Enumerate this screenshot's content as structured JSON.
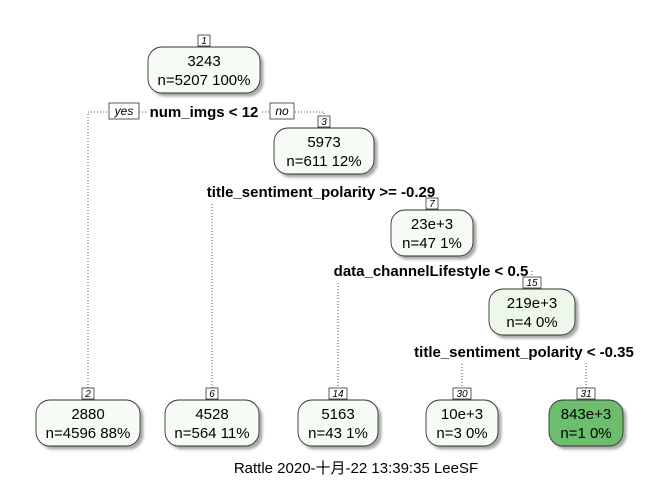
{
  "nodes": [
    {
      "id": "1",
      "value": "3243",
      "stats": "n=5207  100%",
      "fill": "#f7fbf5"
    },
    {
      "id": "3",
      "value": "5973",
      "stats": "n=611  12%",
      "fill": "#f7fbf5"
    },
    {
      "id": "7",
      "value": "23e+3",
      "stats": "n=47  1%",
      "fill": "#f7fbf5"
    },
    {
      "id": "15",
      "value": "219e+3",
      "stats": "n=4  0%",
      "fill": "#edf7ea"
    },
    {
      "id": "2",
      "value": "2880",
      "stats": "n=4596  88%",
      "fill": "#f7fbf5"
    },
    {
      "id": "6",
      "value": "4528",
      "stats": "n=564  11%",
      "fill": "#f7fbf5"
    },
    {
      "id": "14",
      "value": "5163",
      "stats": "n=43  1%",
      "fill": "#f7fbf5"
    },
    {
      "id": "30",
      "value": "10e+3",
      "stats": "n=3  0%",
      "fill": "#f7fbf5"
    },
    {
      "id": "31",
      "value": "843e+3",
      "stats": "n=1  0%",
      "fill": "#6cbd6e"
    }
  ],
  "splits": [
    {
      "at": "1",
      "label": "num_imgs < 12"
    },
    {
      "at": "3",
      "label": "title_sentiment_polarity >= -0.29"
    },
    {
      "at": "7",
      "label": "data_channelLifestyle < 0.5"
    },
    {
      "at": "15",
      "label": "title_sentiment_polarity < -0.35"
    }
  ],
  "edges": [
    {
      "from": "1",
      "to": "2"
    },
    {
      "from": "1",
      "to": "3"
    },
    {
      "from": "3",
      "to": "6"
    },
    {
      "from": "3",
      "to": "7"
    },
    {
      "from": "7",
      "to": "14"
    },
    {
      "from": "7",
      "to": "15"
    },
    {
      "from": "15",
      "to": "30"
    },
    {
      "from": "15",
      "to": "31"
    }
  ],
  "branch_labels": {
    "yes": "yes",
    "no": "no"
  },
  "caption": "Rattle 2020-十月-22 13:39:35 LeeSF"
}
